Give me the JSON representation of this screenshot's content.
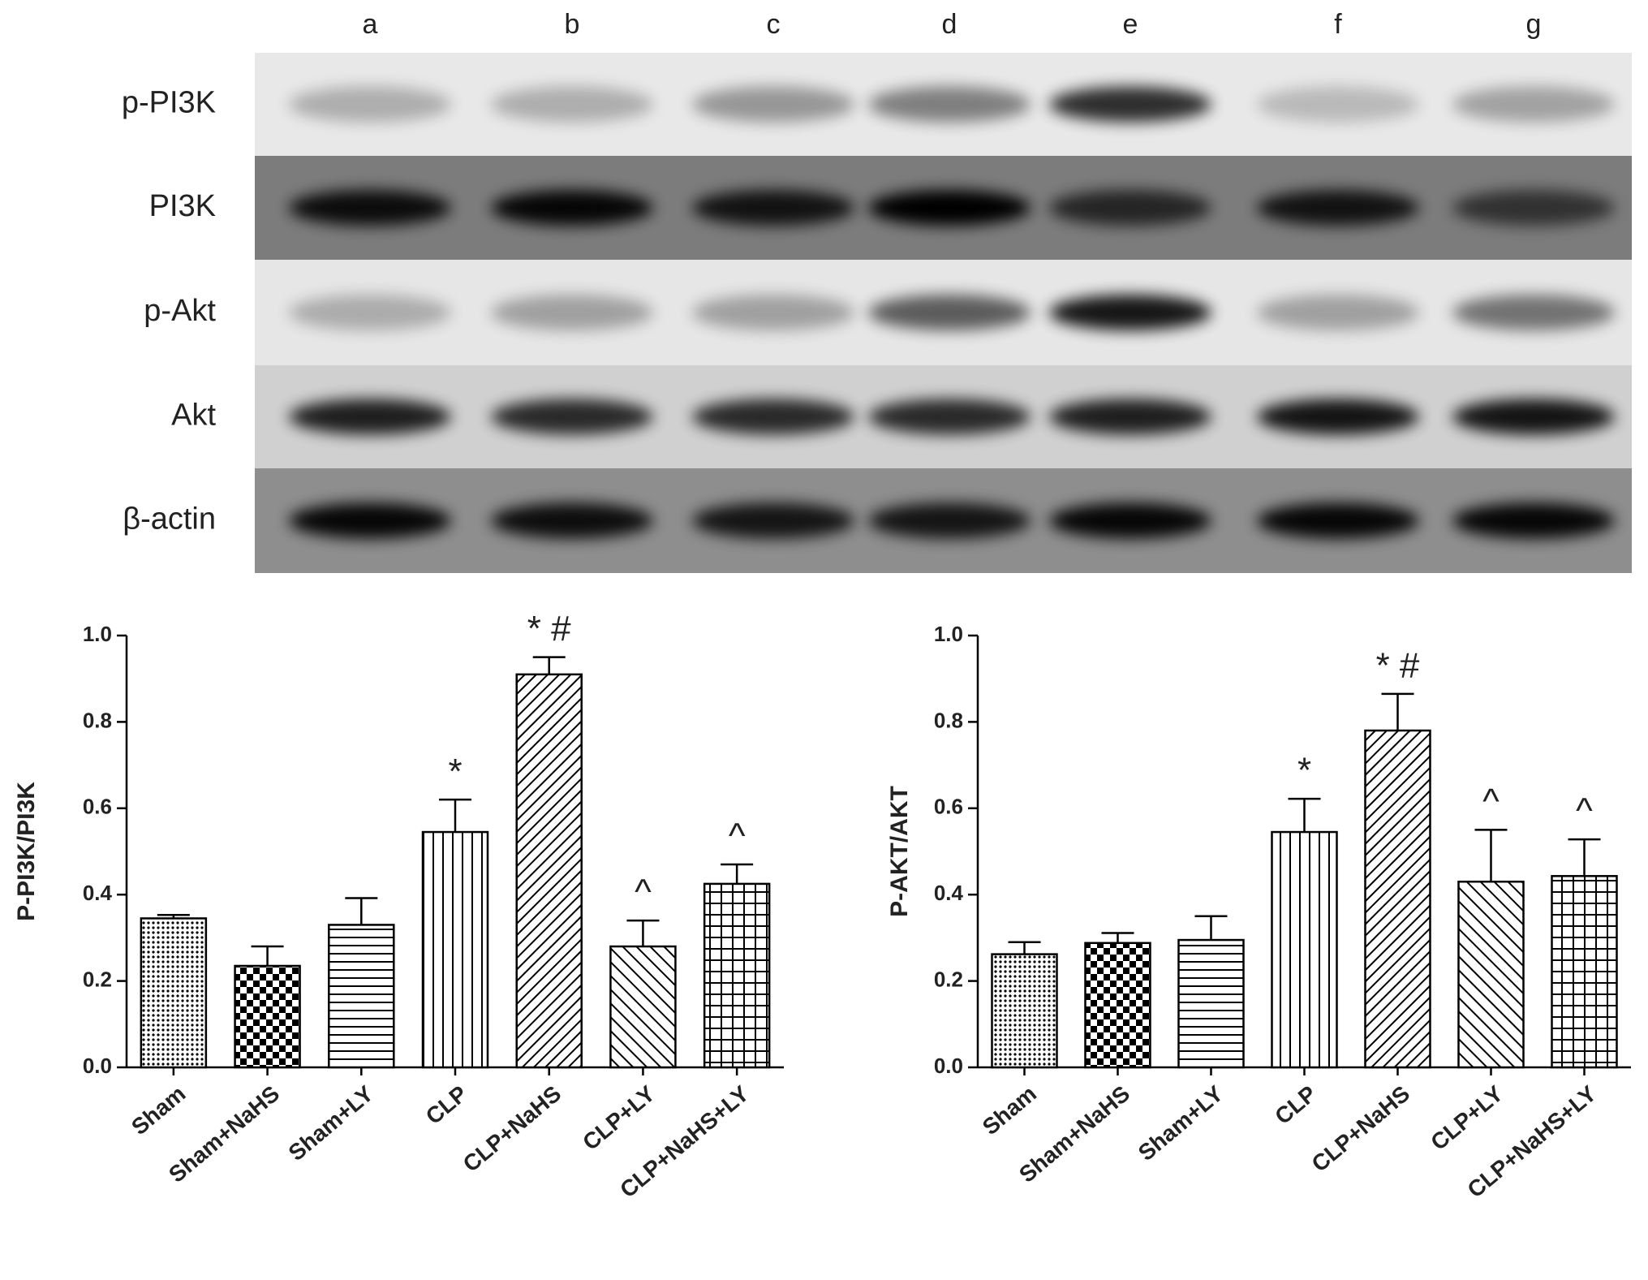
{
  "blot": {
    "lanes": [
      "a",
      "b",
      "c",
      "d",
      "e",
      "f",
      "g"
    ],
    "rows": [
      "p-PI3K",
      "PI3K",
      "p-Akt",
      "Akt",
      "β-actin"
    ]
  },
  "chart_data": [
    {
      "type": "bar",
      "ylabel": "P-PI3K/PI3K",
      "categories": [
        "Sham",
        "Sham+NaHS",
        "Sham+LY",
        "CLP",
        "CLP+NaHS",
        "CLP+LY",
        "CLP+NaHS+LY"
      ],
      "values": [
        0.345,
        0.235,
        0.33,
        0.545,
        0.91,
        0.28,
        0.425
      ],
      "errors": [
        0.008,
        0.045,
        0.062,
        0.075,
        0.04,
        0.06,
        0.045
      ],
      "annotations": [
        null,
        null,
        null,
        "*",
        "* #",
        "^",
        "^"
      ],
      "bar_patterns": [
        "dots",
        "checker",
        "horizontal",
        "vertical",
        "diagonal",
        "back-diagonal",
        "grid"
      ],
      "color": "#000000",
      "ylim": [
        0,
        1
      ],
      "yticks": [
        {
          "value": 0,
          "label": "0.0"
        },
        0.2,
        0.4,
        0.6,
        0.8,
        {
          "value": 1,
          "label": "1.0"
        }
      ]
    },
    {
      "type": "bar",
      "ylabel": "P-AKT/AKT",
      "categories": [
        "Sham",
        "Sham+NaHS",
        "Sham+LY",
        "CLP",
        "CLP+NaHS",
        "CLP+LY",
        "CLP+NaHS+LY"
      ],
      "values": [
        0.262,
        0.288,
        0.295,
        0.545,
        0.78,
        0.43,
        0.443
      ],
      "errors": [
        0.028,
        0.023,
        0.055,
        0.077,
        0.085,
        0.12,
        0.085
      ],
      "annotations": [
        null,
        null,
        null,
        "*",
        "* #",
        "^",
        "^"
      ],
      "bar_patterns": [
        "dots",
        "checker",
        "horizontal",
        "vertical",
        "diagonal",
        "back-diagonal",
        "grid"
      ],
      "color": "#000000",
      "ylim": [
        0,
        1
      ],
      "yticks": [
        {
          "value": 0,
          "label": "0.0"
        },
        0.2,
        0.4,
        0.6,
        0.8,
        {
          "value": 1,
          "label": "1.0"
        }
      ]
    }
  ]
}
